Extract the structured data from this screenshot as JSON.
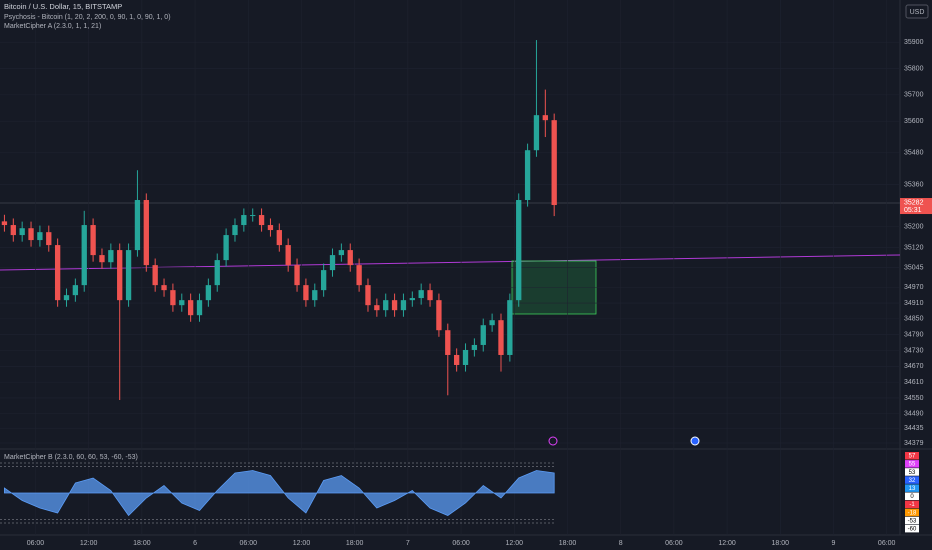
{
  "chart_data": [
    {
      "type": "candlestick",
      "title": "Bitcoin / U.S. Dollar, 15, BITSTAMP",
      "indicators": [
        "Psychosis - Bitcoin (1, 20, 2, 200, 0, 90, 1, 0, 90, 1, 0)",
        "MarketCipher A (2.3.0, 1, 1, 21)"
      ],
      "currency": "USD",
      "countdown": "05:31",
      "up_color": "#26a69a",
      "down_color": "#ef5350",
      "grid": true,
      "x": [
        2.5,
        3.5,
        4.5,
        5.5,
        6.5,
        7.5,
        8.5,
        9.5,
        10.5,
        11.5,
        12.5,
        13.5,
        14.5,
        15.5,
        16.5,
        17.5,
        18.5,
        19.5,
        20.5,
        21.5,
        22.5,
        23.5,
        24.5,
        25.5,
        26.5,
        27.5,
        28.5,
        29.5,
        30.5,
        31.5,
        32.5,
        33.5,
        34.5,
        35.5,
        36.5,
        37.5,
        38.5,
        39.5,
        40.5,
        41.5,
        42.5,
        43.5,
        44.5,
        45.5,
        46.5,
        47.5,
        48.5,
        49.5,
        50.5,
        51.5,
        52.5,
        53.5,
        54.5,
        55.5,
        56.5,
        57.5,
        58.5,
        59.5,
        60.5,
        61.5,
        62.5,
        63.5,
        64.5
      ],
      "open": [
        35220,
        35206,
        35168,
        35194,
        35149,
        35179,
        35130,
        34921,
        34940,
        34978,
        35206,
        35092,
        35065,
        35111,
        34921,
        35111,
        35301,
        35054,
        34978,
        34959,
        34902,
        34921,
        34864,
        34921,
        34978,
        35073,
        35168,
        35206,
        35244,
        35244,
        35206,
        35187,
        35130,
        35054,
        34978,
        34921,
        34959,
        35035,
        35092,
        35111,
        35054,
        34978,
        34902,
        34883,
        34921,
        34883,
        34921,
        34929,
        34959,
        34921,
        34807,
        34713,
        34675,
        34732,
        34751,
        34826,
        34845,
        34713,
        34921,
        35301,
        35490,
        35623,
        35604
      ],
      "high": [
        35245,
        35231,
        35219,
        35219,
        35204,
        35204,
        35155,
        34965,
        35003,
        35260,
        35231,
        35117,
        35136,
        35136,
        35136,
        35414,
        35326,
        35079,
        35003,
        34984,
        34946,
        34946,
        34946,
        35003,
        35098,
        35193,
        35231,
        35269,
        35269,
        35269,
        35231,
        35212,
        35155,
        35079,
        35003,
        34984,
        35060,
        35117,
        35136,
        35136,
        35079,
        35003,
        34927,
        34946,
        34946,
        34946,
        34954,
        34984,
        34984,
        34946,
        34832,
        34738,
        34757,
        34776,
        34851,
        34870,
        34870,
        34946,
        35326,
        35515,
        35908,
        35720,
        35629
      ],
      "low": [
        35181,
        35143,
        35143,
        35124,
        35124,
        35105,
        34896,
        34896,
        34915,
        34953,
        35067,
        35040,
        35040,
        34542,
        34896,
        35086,
        35029,
        34953,
        34934,
        34877,
        34877,
        34839,
        34839,
        34896,
        34953,
        35048,
        35143,
        35181,
        35219,
        35181,
        35162,
        35105,
        35029,
        34953,
        34896,
        34896,
        34934,
        35010,
        35067,
        35029,
        34953,
        34877,
        34858,
        34858,
        34858,
        34858,
        34896,
        34904,
        34896,
        34782,
        34560,
        34650,
        34650,
        34707,
        34726,
        34801,
        34650,
        34688,
        34896,
        35276,
        35465,
        35540,
        35240
      ],
      "close": [
        35206,
        35168,
        35194,
        35149,
        35179,
        35130,
        34921,
        34940,
        34978,
        35206,
        35092,
        35065,
        35111,
        34921,
        35111,
        35301,
        35054,
        34978,
        34959,
        34902,
        34921,
        34864,
        34921,
        34978,
        35073,
        35168,
        35206,
        35244,
        35244,
        35206,
        35187,
        35130,
        35054,
        34978,
        34921,
        34959,
        35035,
        35092,
        35111,
        35054,
        34978,
        34902,
        34883,
        34921,
        34883,
        34921,
        34929,
        34959,
        34921,
        34807,
        34713,
        34675,
        34732,
        34751,
        34826,
        34845,
        34713,
        34921,
        35301,
        35490,
        35623,
        35604,
        35282
      ],
      "xlim": [
        2,
        103.5
      ],
      "ylim": [
        34360,
        36060
      ],
      "yticks": [
        35900,
        35800,
        35700,
        35600,
        35480,
        35360,
        35200,
        35120,
        35045,
        34970,
        34910,
        34850,
        34790,
        34730,
        34670,
        34610,
        34550,
        34490,
        34435,
        34379
      ],
      "xticks": [
        {
          "value": 6,
          "label": "06:00"
        },
        {
          "value": 12,
          "label": "12:00"
        },
        {
          "value": 18,
          "label": "18:00"
        },
        {
          "value": 24,
          "label": "6"
        },
        {
          "value": 30,
          "label": "06:00"
        },
        {
          "value": 36,
          "label": "12:00"
        },
        {
          "value": 42,
          "label": "18:00"
        },
        {
          "value": 48,
          "label": "7"
        },
        {
          "value": 54,
          "label": "06:00"
        },
        {
          "value": 60,
          "label": "12:00"
        },
        {
          "value": 66,
          "label": "18:00"
        },
        {
          "value": 72,
          "label": "8"
        },
        {
          "value": 78,
          "label": "06:00"
        },
        {
          "value": 84,
          "label": "12:00"
        },
        {
          "value": 90,
          "label": "18:00"
        },
        {
          "value": 96,
          "label": "9"
        },
        {
          "value": 102,
          "label": "06:00"
        }
      ]
    },
    {
      "type": "area",
      "title": "MarketCipher B (2.3.0, 60, 60, 53, -60, -53)",
      "color": "#5b9cf6",
      "x": [
        2.5,
        4.5,
        6.5,
        8.5,
        10.5,
        12.5,
        14.5,
        16.5,
        18.5,
        20.5,
        22.5,
        24.5,
        26.5,
        28.5,
        30.5,
        32.5,
        34.5,
        36.5,
        38.5,
        40.5,
        42.5,
        44.5,
        46.5,
        48.5,
        50.5,
        52.5,
        54.5,
        56.5,
        58.5,
        60.5,
        62.5,
        64.5
      ],
      "values": [
        10,
        -15,
        -30,
        -40,
        20,
        30,
        5,
        -45,
        -10,
        15,
        -20,
        -35,
        5,
        40,
        45,
        35,
        -10,
        -40,
        25,
        35,
        10,
        -30,
        -15,
        5,
        -30,
        -45,
        -20,
        15,
        -10,
        30,
        45,
        40
      ],
      "ylim": [
        -70,
        70
      ],
      "levels": [
        60,
        53,
        -53,
        -60
      ],
      "value_boxes": [
        {
          "value": 57,
          "color": "#f23645"
        },
        {
          "value": 55,
          "color": "#e040fb"
        },
        {
          "value": 53,
          "color": "#ffffff"
        },
        {
          "value": 32,
          "color": "#2962ff"
        },
        {
          "value": 13,
          "color": "#2196f3"
        },
        {
          "value": 0,
          "color": "#ffffff"
        },
        {
          "value": -1,
          "color": "#f23645"
        },
        {
          "value": -18,
          "color": "#ff9800"
        },
        {
          "value": -53,
          "color": "#ffffff"
        },
        {
          "value": -60,
          "color": "#ffffff"
        }
      ]
    }
  ]
}
